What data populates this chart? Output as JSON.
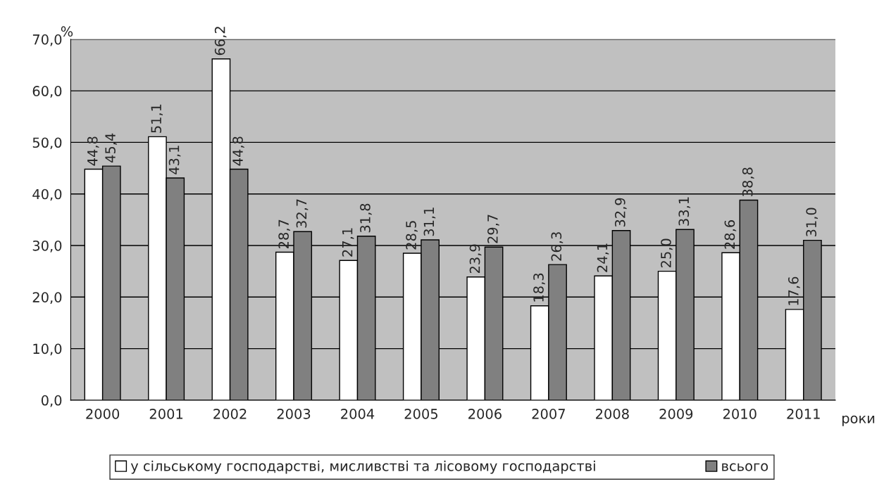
{
  "chart_data": {
    "type": "bar",
    "ylabel": "%",
    "xlabel": "роки",
    "categories": [
      "2000",
      "2001",
      "2002",
      "2003",
      "2004",
      "2005",
      "2006",
      "2007",
      "2008",
      "2009",
      "2010",
      "2011"
    ],
    "series": [
      {
        "name": "у сільському господарстві, мисливстві та лісовому господарстві",
        "color": "#ffffff",
        "values": [
          44.8,
          51.1,
          66.2,
          28.7,
          27.1,
          28.5,
          23.9,
          18.3,
          24.1,
          25.0,
          28.6,
          17.6
        ],
        "value_labels": [
          "44,8",
          "51,1",
          "66,2",
          "28,7",
          "27,1",
          "28,5",
          "23,9",
          "18,3",
          "24,1",
          "25,0",
          "28,6",
          "17,6"
        ]
      },
      {
        "name": "всього",
        "color": "#808080",
        "values": [
          45.4,
          43.1,
          44.8,
          32.7,
          31.8,
          31.1,
          29.7,
          26.3,
          32.9,
          33.1,
          38.8,
          31.0
        ],
        "value_labels": [
          "45,4",
          "43,1",
          "44,8",
          "32,7",
          "31,8",
          "31,1",
          "29,7",
          "26,3",
          "32,9",
          "33,1",
          "38,8",
          "31,0"
        ]
      }
    ],
    "ylim": [
      0,
      70
    ],
    "yticks": [
      {
        "value": 0,
        "label": "0,0"
      },
      {
        "value": 10,
        "label": "10,0"
      },
      {
        "value": 20,
        "label": "20,0"
      },
      {
        "value": 30,
        "label": "30,0"
      },
      {
        "value": 40,
        "label": "40,0"
      },
      {
        "value": 50,
        "label": "50,0"
      },
      {
        "value": 60,
        "label": "60,0"
      },
      {
        "value": 70,
        "label": "70,0"
      }
    ],
    "grid": "y",
    "legend": "bottom"
  }
}
